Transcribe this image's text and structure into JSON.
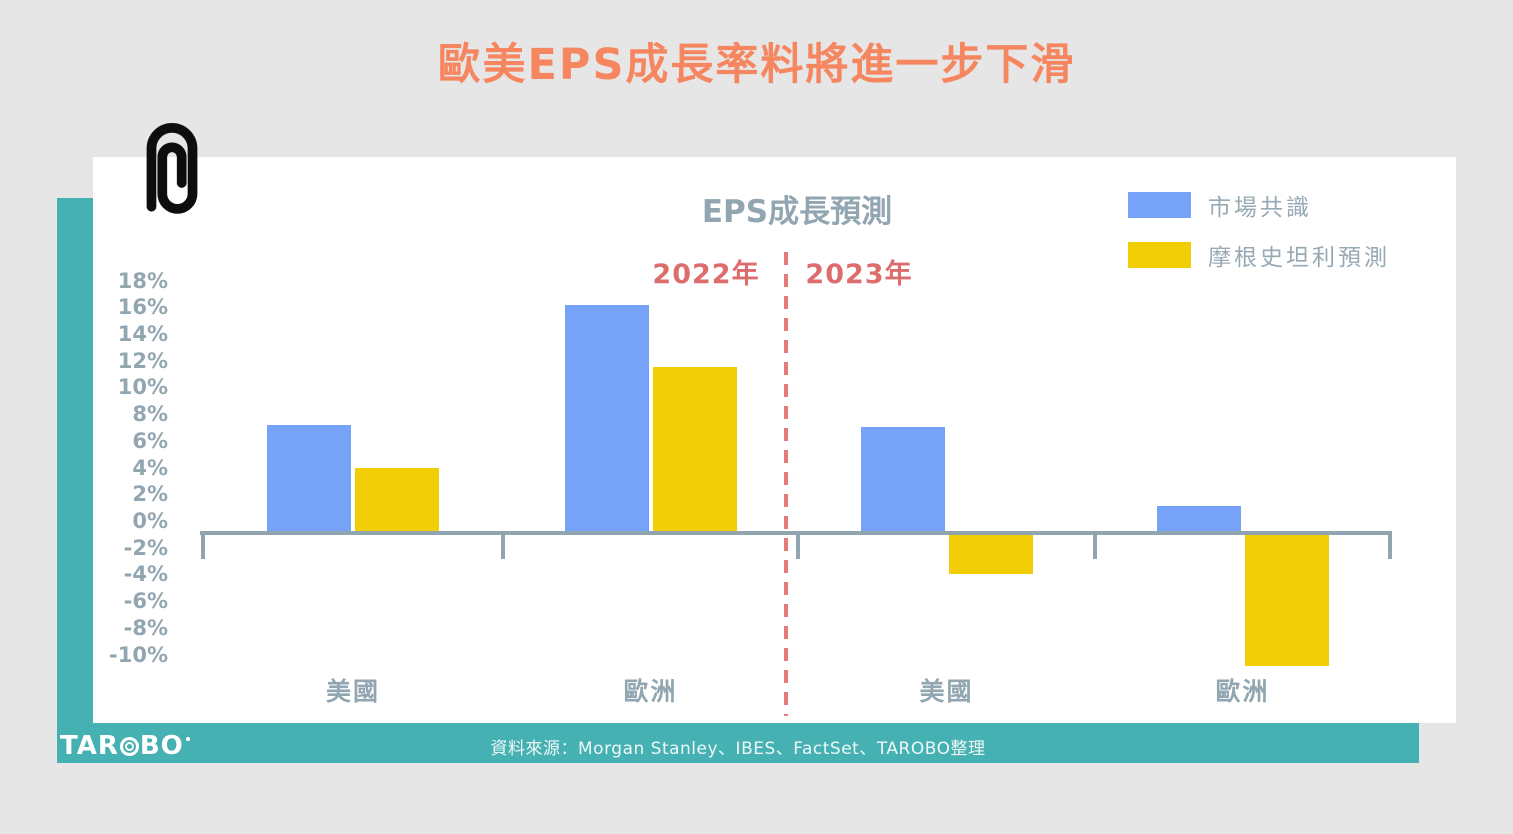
{
  "page": {
    "title": "歐美EPS成長率料將進一步下滑"
  },
  "colors": {
    "background": "#E7E6E6",
    "panel_teal": "#46B1B2",
    "card_white": "#FFFFFF",
    "title_orange": "#F6865F",
    "consensus_blue": "#76A2F7",
    "morgan_stanley_yellow": "#F1CE05",
    "axis_gray": "#91A5B0",
    "year_red": "#DD6C6C",
    "divider_red": "#E37B78"
  },
  "chart_data": {
    "type": "bar",
    "title": "EPS成長預測",
    "group_labels": [
      "2022年",
      "2023年"
    ],
    "categories": [
      "美國",
      "歐洲",
      "美國",
      "歐洲"
    ],
    "series": [
      {
        "name": "市場共識",
        "color": "#76A2F7",
        "values": [
          7.9,
          16.9,
          7.8,
          1.9
        ]
      },
      {
        "name": "摩根史坦利預測",
        "color": "#F1CE05",
        "values": [
          4.7,
          12.3,
          -3.2,
          -10.1
        ]
      }
    ],
    "ylim": [
      -10,
      18
    ],
    "ytick_step": 2,
    "yticklabels": [
      "18%",
      "16%",
      "14%",
      "12%",
      "10%",
      "8%",
      "6%",
      "4%",
      "2%",
      "0%",
      "-2%",
      "-4%",
      "-6%",
      "-8%",
      "-10%"
    ],
    "legend_position": "top-right",
    "grid": false,
    "divider_note": "dashed vertical line separates 2022年 and 2023年 groups"
  },
  "footer": {
    "logo_prefix": "TAR",
    "logo_suffix": "BO",
    "source_text": "資料來源：Morgan Stanley、IBES、FactSet、TAROBO整理"
  }
}
